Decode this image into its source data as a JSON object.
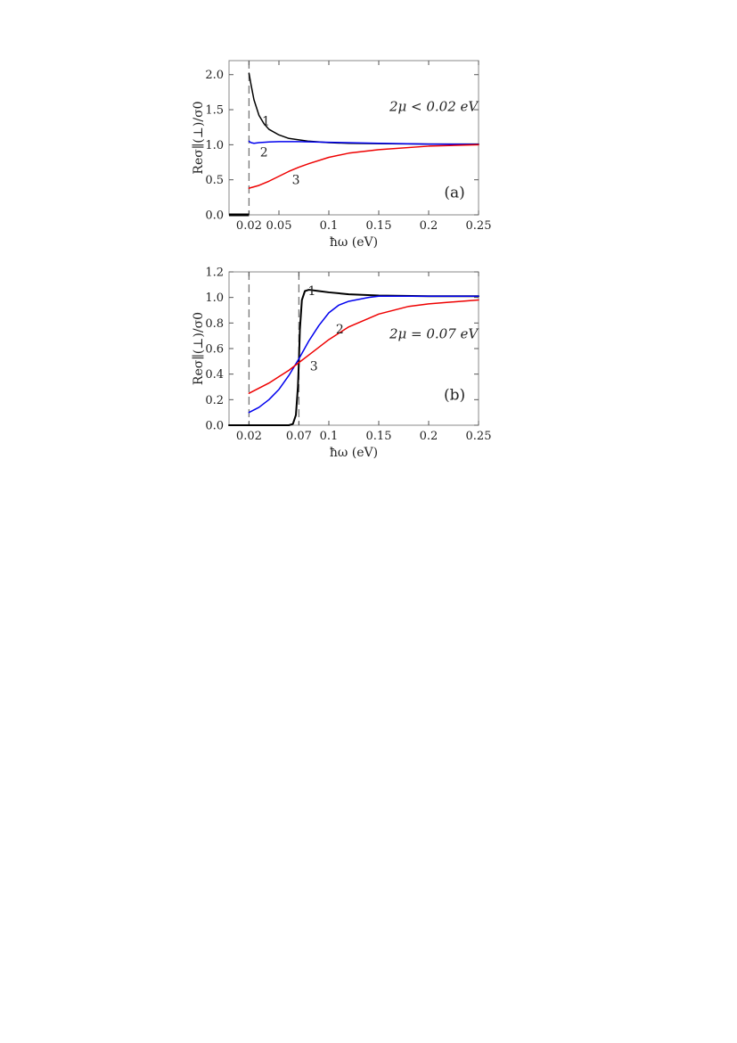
{
  "chart_data": [
    {
      "type": "line",
      "panel_label": "(a)",
      "annotation": "2μ < 0.02 eV",
      "xlabel": "ħω (eV)",
      "ylabel": "Reσ∥(⊥)/σ0",
      "xlim": [
        0.0,
        0.25
      ],
      "ylim": [
        0.0,
        2.2
      ],
      "x_ticks": [
        0.02,
        0.05,
        0.1,
        0.15,
        0.2,
        0.25
      ],
      "x_tick_labels": [
        "0.02",
        "0.05",
        "0.1",
        "0.15",
        "0.2",
        "0.25"
      ],
      "y_ticks": [
        0.0,
        0.5,
        1.0,
        1.5,
        2.0
      ],
      "y_tick_labels": [
        "0.0",
        "0.5",
        "1.0",
        "1.5",
        "2.0"
      ],
      "dashed_vlines": [
        0.02
      ],
      "grid": false,
      "colors": {
        "black": "#000000",
        "blue": "#0000ee",
        "red": "#ee0000",
        "dashed": "#777777"
      },
      "series": [
        {
          "label": "1",
          "color": "#000000",
          "x": [
            0.02,
            0.022,
            0.025,
            0.03,
            0.035,
            0.04,
            0.05,
            0.06,
            0.07,
            0.08,
            0.1,
            0.12,
            0.15,
            0.2,
            0.25
          ],
          "y": [
            2.02,
            1.86,
            1.64,
            1.42,
            1.3,
            1.22,
            1.14,
            1.09,
            1.07,
            1.05,
            1.03,
            1.02,
            1.015,
            1.01,
            1.01
          ]
        },
        {
          "label": "2",
          "color": "#0000ee",
          "x": [
            0.02,
            0.022,
            0.025,
            0.03,
            0.04,
            0.05,
            0.07,
            0.1,
            0.15,
            0.2,
            0.25
          ],
          "y": [
            1.05,
            1.03,
            1.02,
            1.03,
            1.04,
            1.045,
            1.045,
            1.035,
            1.02,
            1.01,
            1.005
          ]
        },
        {
          "label": "3",
          "color": "#ee0000",
          "x": [
            0.02,
            0.03,
            0.04,
            0.05,
            0.06,
            0.07,
            0.08,
            0.1,
            0.12,
            0.15,
            0.2,
            0.25
          ],
          "y": [
            0.38,
            0.42,
            0.48,
            0.55,
            0.62,
            0.68,
            0.73,
            0.82,
            0.88,
            0.93,
            0.98,
            1.0
          ]
        }
      ],
      "segments": [
        {
          "color": "#000000",
          "x": [
            0.0,
            0.02
          ],
          "y": [
            0.0,
            0.0
          ]
        }
      ],
      "label_positions": [
        {
          "text": "1",
          "x": 0.037,
          "y": 1.28
        },
        {
          "text": "2",
          "x": 0.035,
          "y": 0.83
        },
        {
          "text": "3",
          "x": 0.067,
          "y": 0.44
        }
      ],
      "annotation_position": {
        "x": 0.205,
        "y": 1.48
      },
      "panel_label_position": {
        "x": 0.226,
        "y": 0.25
      }
    },
    {
      "type": "line",
      "panel_label": "(b)",
      "annotation": "2μ = 0.07 eV",
      "xlabel": "ħω (eV)",
      "ylabel": "Reσ∥(⊥)/σ0",
      "xlim": [
        0.0,
        0.25
      ],
      "ylim": [
        0.0,
        1.2
      ],
      "x_ticks": [
        0.02,
        0.07,
        0.1,
        0.15,
        0.2,
        0.25
      ],
      "x_tick_labels": [
        "0.02",
        "0.07",
        "0.1",
        "0.15",
        "0.2",
        "0.25"
      ],
      "y_ticks": [
        0.0,
        0.2,
        0.4,
        0.6,
        0.8,
        1.0,
        1.2
      ],
      "y_tick_labels": [
        "0.0",
        "0.2",
        "0.4",
        "0.6",
        "0.8",
        "1.0",
        "1.2"
      ],
      "dashed_vlines": [
        0.02,
        0.07
      ],
      "grid": false,
      "colors": {
        "black": "#000000",
        "blue": "#0000ee",
        "red": "#ee0000",
        "dashed": "#777777"
      },
      "series": [
        {
          "label": "1",
          "color": "#000000",
          "x": [
            0.0,
            0.02,
            0.05,
            0.06,
            0.064,
            0.067,
            0.069,
            0.07,
            0.071,
            0.073,
            0.076,
            0.08,
            0.09,
            0.1,
            0.12,
            0.15,
            0.2,
            0.25
          ],
          "y": [
            0.0,
            0.0,
            0.0,
            0.0,
            0.01,
            0.08,
            0.3,
            0.5,
            0.75,
            0.98,
            1.05,
            1.06,
            1.05,
            1.04,
            1.025,
            1.015,
            1.01,
            1.01
          ]
        },
        {
          "label": "2",
          "color": "#0000ee",
          "x": [
            0.02,
            0.03,
            0.04,
            0.05,
            0.06,
            0.07,
            0.08,
            0.09,
            0.1,
            0.11,
            0.12,
            0.14,
            0.15,
            0.2,
            0.25
          ],
          "y": [
            0.1,
            0.14,
            0.2,
            0.28,
            0.39,
            0.52,
            0.66,
            0.78,
            0.88,
            0.94,
            0.97,
            1.0,
            1.01,
            1.01,
            1.01
          ]
        },
        {
          "label": "3",
          "color": "#ee0000",
          "x": [
            0.02,
            0.03,
            0.04,
            0.05,
            0.06,
            0.07,
            0.08,
            0.09,
            0.1,
            0.12,
            0.15,
            0.18,
            0.2,
            0.25
          ],
          "y": [
            0.25,
            0.29,
            0.33,
            0.38,
            0.43,
            0.49,
            0.55,
            0.61,
            0.67,
            0.77,
            0.87,
            0.93,
            0.95,
            0.98
          ]
        }
      ],
      "segments": [],
      "label_positions": [
        {
          "text": "1",
          "x": 0.083,
          "y": 1.02
        },
        {
          "text": "2",
          "x": 0.111,
          "y": 0.72
        },
        {
          "text": "3",
          "x": 0.085,
          "y": 0.43
        }
      ],
      "annotation_position": {
        "x": 0.205,
        "y": 0.68
      },
      "panel_label_position": {
        "x": 0.226,
        "y": 0.2
      }
    }
  ]
}
